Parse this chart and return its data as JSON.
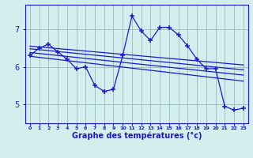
{
  "title": "",
  "xlabel": "Graphe des températures (°c)",
  "bg_color": "#d4eeee",
  "line_color": "#1a1acc",
  "grid_color": "#99bbbb",
  "xlim": [
    -0.5,
    23.5
  ],
  "ylim": [
    4.5,
    7.65
  ],
  "yticks": [
    5,
    6,
    7
  ],
  "xtick_labels": [
    "0",
    "1",
    "2",
    "3",
    "4",
    "5",
    "6",
    "7",
    "8",
    "9",
    "10",
    "11",
    "12",
    "13",
    "14",
    "15",
    "16",
    "17",
    "18",
    "19",
    "20",
    "21",
    "22",
    "23"
  ],
  "data_x": [
    0,
    1,
    2,
    3,
    4,
    5,
    6,
    7,
    8,
    9,
    10,
    11,
    12,
    13,
    14,
    15,
    16,
    17,
    18,
    19,
    20,
    21,
    22,
    23
  ],
  "data_y": [
    6.3,
    6.5,
    6.6,
    6.4,
    6.2,
    5.95,
    6.0,
    5.5,
    5.35,
    5.4,
    6.3,
    7.35,
    6.95,
    6.7,
    7.05,
    7.05,
    6.85,
    6.55,
    6.2,
    5.95,
    5.95,
    4.95,
    4.85,
    4.9
  ],
  "trend1_x": [
    0,
    23
  ],
  "trend1_y": [
    6.55,
    6.05
  ],
  "trend2_x": [
    0,
    23
  ],
  "trend2_y": [
    6.48,
    5.92
  ],
  "trend3_x": [
    0,
    23
  ],
  "trend3_y": [
    6.38,
    5.78
  ],
  "trend4_x": [
    0,
    23
  ],
  "trend4_y": [
    6.28,
    5.62
  ]
}
